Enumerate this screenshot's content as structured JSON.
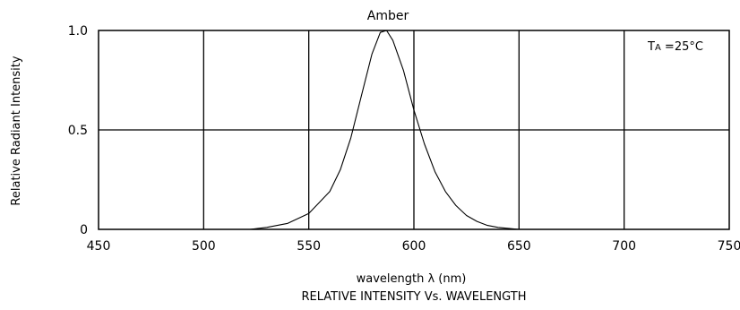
{
  "chart_data": {
    "type": "line",
    "title": "Amber",
    "xlabel": "wavelength λ (nm)",
    "ylabel": "Relative Radiant Intensity",
    "caption": "RELATIVE INTENSITY Vs. WAVELENGTH",
    "annotation": {
      "main": "T",
      "sub": "A",
      "rest": " =25°C"
    },
    "xlim": [
      450,
      750
    ],
    "ylim": [
      0,
      1.0
    ],
    "x_ticks": [
      450,
      500,
      550,
      600,
      650,
      700,
      750
    ],
    "y_ticks": [
      {
        "value": 0,
        "label": "0"
      },
      {
        "value": 0.5,
        "label": "0.5"
      },
      {
        "value": 1.0,
        "label": "1.0"
      }
    ],
    "grid": true,
    "series": [
      {
        "x": [
          522,
          530,
          540,
          550,
          560,
          565,
          570,
          575,
          580,
          584,
          587,
          590,
          595,
          600,
          605,
          610,
          615,
          620,
          625,
          630,
          635,
          640,
          645,
          650
        ],
        "y": [
          0,
          0.01,
          0.03,
          0.08,
          0.19,
          0.3,
          0.46,
          0.67,
          0.88,
          0.99,
          1.0,
          0.95,
          0.8,
          0.6,
          0.43,
          0.29,
          0.19,
          0.12,
          0.07,
          0.04,
          0.02,
          0.01,
          0.005,
          0
        ]
      }
    ]
  }
}
